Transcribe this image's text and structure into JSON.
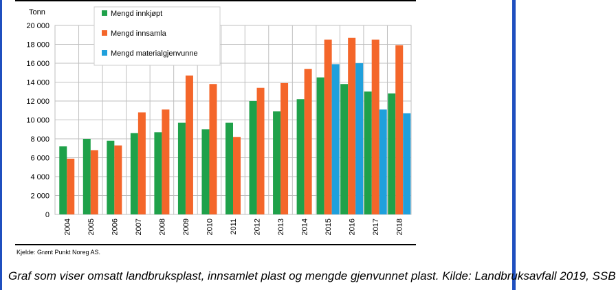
{
  "chart_data": {
    "type": "bar",
    "ylabel": "Tonn",
    "ylim": [
      0,
      20000
    ],
    "yticks": [
      0,
      2000,
      4000,
      6000,
      8000,
      10000,
      12000,
      14000,
      16000,
      18000,
      20000
    ],
    "ytick_labels": [
      "0",
      "2 000",
      "4 000",
      "6 000",
      "8 000",
      "10 000",
      "12 000",
      "14 000",
      "16 000",
      "18 000",
      "20 000"
    ],
    "grid": true,
    "legend": "top-left",
    "categories": [
      "2004",
      "2005",
      "2006",
      "2007",
      "2008",
      "2009",
      "2010",
      "2011",
      "2012",
      "2013",
      "2014",
      "2015",
      "2016",
      "2017",
      "2018"
    ],
    "series": [
      {
        "name": "Mengd innkjøpt",
        "color": "#1fa14a",
        "values": [
          7200,
          8000,
          7800,
          8600,
          8700,
          9700,
          9000,
          9700,
          12000,
          10900,
          12200,
          14500,
          13800,
          13000,
          12800
        ]
      },
      {
        "name": "Mengd innsamla",
        "color": "#f4662a",
        "values": [
          5900,
          6800,
          7300,
          10800,
          11100,
          14700,
          13800,
          8200,
          13400,
          13900,
          15400,
          18500,
          18700,
          18500,
          17900
        ]
      },
      {
        "name": "Mengd materialgjenvunne",
        "color": "#1fa0dc",
        "values": [
          null,
          null,
          null,
          null,
          null,
          null,
          null,
          null,
          null,
          null,
          null,
          15900,
          16000,
          11100,
          10700
        ]
      }
    ]
  },
  "source_note": "Kjelde: Grønt Punkt Noreg AS.",
  "caption": "Graf som viser omsatt landbruksplast, innsamlet plast og mengde gjenvunnet plast. Kilde: Landbruksavfall 2019, SSB"
}
